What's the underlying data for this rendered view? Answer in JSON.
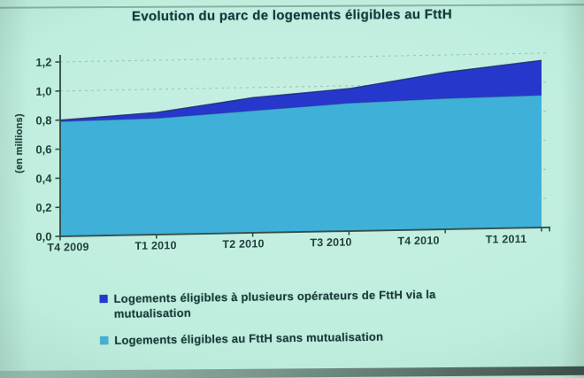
{
  "title": "Evolution du parc de logements éligibles au FttH",
  "colors": {
    "slide_background": "#bfeede",
    "text": "#21403d",
    "axis": "#33504b",
    "series_mutualisation": "#2638cc",
    "series_sans_mutualisation": "#3fb0d8"
  },
  "chart_data": {
    "type": "area",
    "stacked": true,
    "title": "Evolution du parc de logements éligibles au FttH",
    "ylabel": "(en millions)",
    "xlabel": "",
    "x": [
      "T4 2009",
      "T1 2010",
      "T2 2010",
      "T3 2010",
      "T4 2010",
      "T1 2011"
    ],
    "series": [
      {
        "name": "Logements éligibles au FttH sans mutualisation",
        "stack_position": "bottom",
        "color": "#3fb0d8",
        "values": [
          0.79,
          0.8,
          0.84,
          0.88,
          0.9,
          0.91
        ]
      },
      {
        "name": "Logements éligibles à plusieurs opérateurs de FttH via la mutualisation",
        "stack_position": "top",
        "color": "#2638cc",
        "values": [
          0.01,
          0.04,
          0.09,
          0.1,
          0.18,
          0.24
        ]
      }
    ],
    "totals": [
      0.8,
      0.84,
      0.93,
      0.98,
      1.08,
      1.15
    ],
    "ylim": [
      0,
      1.2
    ],
    "ytick_step": 0.2,
    "ytick_labels": [
      "0,0",
      "0,2",
      "0,4",
      "0,6",
      "0,8",
      "1,0",
      "1,2"
    ],
    "grid": "horizontal-dashed",
    "legend_position": "bottom"
  },
  "legend": {
    "items": [
      {
        "label": "Logements éligibles à plusieurs opérateurs de FttH via la mutualisation",
        "color": "#2638cc"
      },
      {
        "label": "Logements éligibles au FttH sans mutualisation",
        "color": "#3fb0d8"
      }
    ]
  }
}
